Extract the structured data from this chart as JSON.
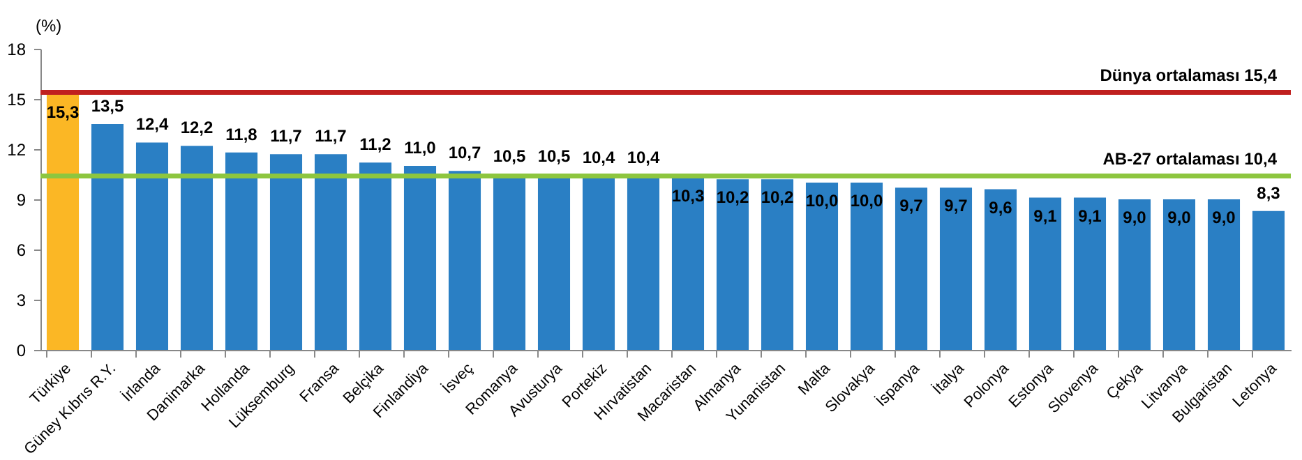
{
  "chart_data": {
    "type": "bar",
    "ylabel": "(%)",
    "categories": [
      "Türkiye",
      "Güney Kıbrıs R.Y.",
      "İrlanda",
      "Danimarka",
      "Hollanda",
      "Lüksemburg",
      "Fransa",
      "Belçika",
      "Finlandiya",
      "İsveç",
      "Romanya",
      "Avusturya",
      "Portekiz",
      "Hırvatistan",
      "Macaristan",
      "Almanya",
      "Yunanistan",
      "Malta",
      "Slovakya",
      "İspanya",
      "İtalya",
      "Polonya",
      "Estonya",
      "Slovenya",
      "Çekya",
      "Litvanya",
      "Bulgaristan",
      "Letonya"
    ],
    "values": [
      15.3,
      13.5,
      12.4,
      12.2,
      11.8,
      11.7,
      11.7,
      11.2,
      11.0,
      10.7,
      10.5,
      10.5,
      10.4,
      10.4,
      10.3,
      10.2,
      10.2,
      10.0,
      10.0,
      9.7,
      9.7,
      9.6,
      9.1,
      9.1,
      9.0,
      9.0,
      9.0,
      8.3
    ],
    "value_labels": [
      "15,3",
      "13,5",
      "12,4",
      "12,2",
      "11,8",
      "11,7",
      "11,7",
      "11,2",
      "11,0",
      "10,7",
      "10,5",
      "10,5",
      "10,4",
      "10,4",
      "10,3",
      "10,2",
      "10,2",
      "10,0",
      "10,0",
      "9,7",
      "9,7",
      "9,6",
      "9,1",
      "9,1",
      "9,0",
      "9,0",
      "9,0",
      "8,3"
    ],
    "colors": [
      "#fbb725",
      "#2a7fc4",
      "#2a7fc4",
      "#2a7fc4",
      "#2a7fc4",
      "#2a7fc4",
      "#2a7fc4",
      "#2a7fc4",
      "#2a7fc4",
      "#2a7fc4",
      "#2a7fc4",
      "#2a7fc4",
      "#2a7fc4",
      "#2a7fc4",
      "#2a7fc4",
      "#2a7fc4",
      "#2a7fc4",
      "#2a7fc4",
      "#2a7fc4",
      "#2a7fc4",
      "#2a7fc4",
      "#2a7fc4",
      "#2a7fc4",
      "#2a7fc4",
      "#2a7fc4",
      "#2a7fc4",
      "#2a7fc4",
      "#2a7fc4"
    ],
    "ylim": [
      0,
      18
    ],
    "yticks": [
      0,
      3,
      6,
      9,
      12,
      15,
      18
    ],
    "grid": false,
    "ref_lines": [
      {
        "axis": "y",
        "value": 15.4,
        "label": "Dünya ortalaması   15,4",
        "color": "#c0201f"
      },
      {
        "axis": "y",
        "value": 10.4,
        "label": "AB-27 ortalaması   10,4",
        "color": "#8dc63f"
      }
    ]
  }
}
